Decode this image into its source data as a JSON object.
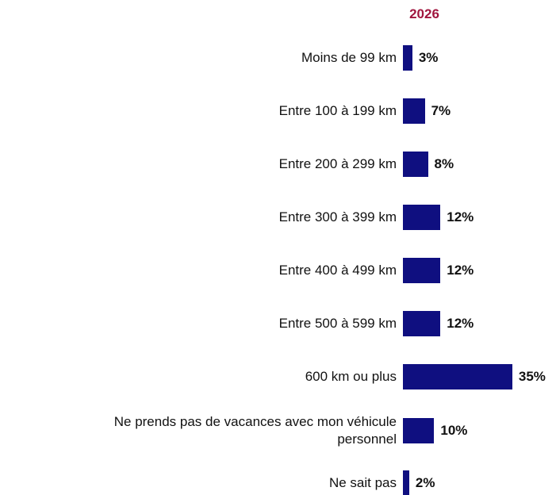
{
  "chart_data": {
    "type": "bar",
    "orientation": "horizontal",
    "title": "2026",
    "title_color": "#a0153e",
    "color": "#0f0f80",
    "categories": [
      "Moins de 99 km",
      "Entre 100 à 199 km",
      "Entre 200 à 299 km",
      "Entre 300 à 399 km",
      "Entre 400 à 499 km",
      "Entre 500 à 599 km",
      "600 km ou plus",
      "Ne prends pas de vacances avec mon véhicule personnel",
      "Ne sait pas"
    ],
    "values": [
      3,
      7,
      8,
      12,
      12,
      12,
      35,
      10,
      2
    ],
    "value_labels": [
      "3%",
      "7%",
      "8%",
      "12%",
      "12%",
      "12%",
      "35%",
      "10%",
      "2%"
    ]
  }
}
